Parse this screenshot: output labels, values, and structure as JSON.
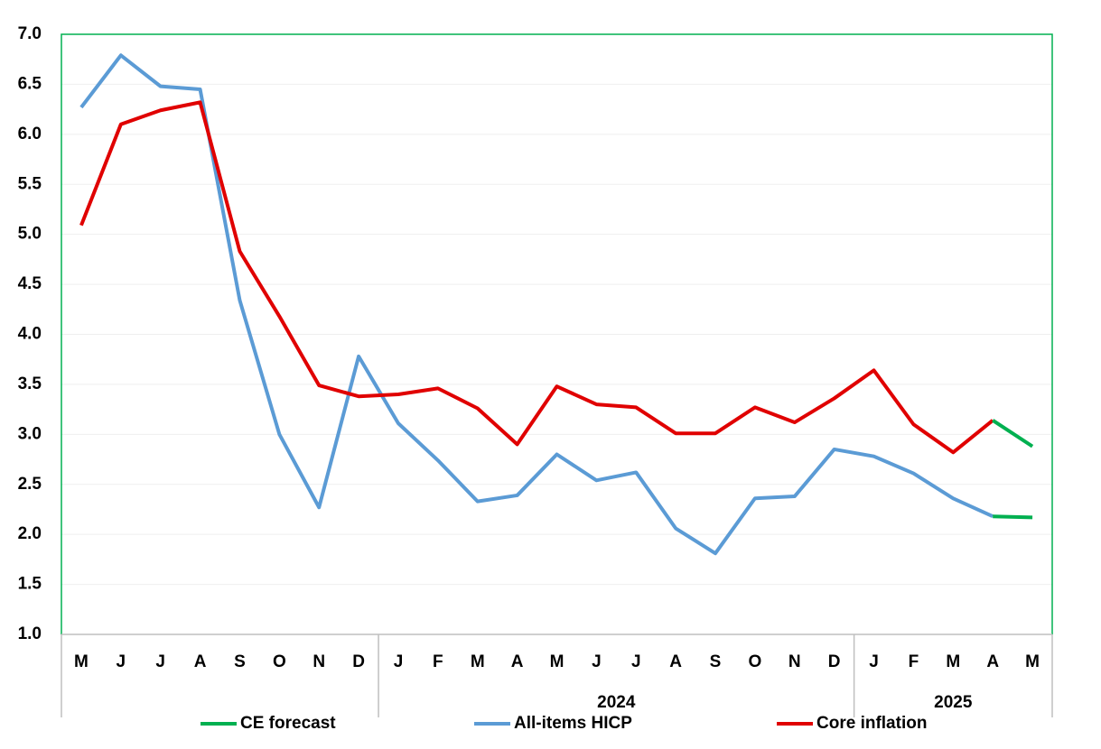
{
  "chart_data": {
    "type": "line",
    "categories": [
      "M",
      "J",
      "J",
      "A",
      "S",
      "O",
      "N",
      "D",
      "J",
      "F",
      "M",
      "A",
      "M",
      "J",
      "J",
      "A",
      "S",
      "O",
      "N",
      "D",
      "J",
      "F",
      "M",
      "A",
      "M"
    ],
    "groups": [
      {
        "size": 8
      },
      {
        "label": "2024",
        "size": 12
      },
      {
        "label": "2025",
        "size": 5
      }
    ],
    "series": [
      {
        "name": "CE forecast",
        "color": "#00b050",
        "values": [
          null,
          null,
          null,
          null,
          null,
          null,
          null,
          null,
          null,
          null,
          null,
          null,
          null,
          null,
          null,
          null,
          null,
          null,
          null,
          null,
          null,
          null,
          null,
          3.14,
          2.88
        ]
      },
      {
        "name": "All-items HICP",
        "color": "#5b9bd5",
        "values": [
          6.27,
          6.79,
          6.48,
          6.45,
          4.34,
          3.0,
          2.27,
          3.78,
          3.11,
          2.74,
          2.33,
          2.39,
          2.8,
          2.54,
          2.62,
          2.06,
          1.81,
          2.36,
          2.38,
          2.85,
          2.78,
          2.61,
          2.36,
          2.18,
          null
        ]
      },
      {
        "name": "Core inflation",
        "color": "#e00000",
        "values": [
          5.09,
          6.1,
          6.24,
          6.32,
          4.83,
          4.18,
          3.49,
          3.38,
          3.4,
          3.46,
          3.26,
          2.9,
          3.48,
          3.3,
          3.27,
          3.01,
          3.01,
          3.27,
          3.12,
          3.36,
          3.64,
          3.1,
          2.82,
          3.14,
          null
        ]
      },
      {
        "color": "#00b050",
        "values": [
          null,
          null,
          null,
          null,
          null,
          null,
          null,
          null,
          null,
          null,
          null,
          null,
          null,
          null,
          null,
          null,
          null,
          null,
          null,
          null,
          null,
          null,
          null,
          2.18,
          2.17
        ]
      }
    ],
    "ylim": [
      1,
      7
    ],
    "yticks": [
      {
        "value": 1,
        "label": "1.0"
      },
      1.5,
      {
        "value": 2,
        "label": "2.0"
      },
      2.5,
      {
        "value": 3,
        "label": "3.0"
      },
      3.5,
      {
        "value": 4,
        "label": "4.0"
      },
      4.5,
      {
        "value": 5,
        "label": "5.0"
      },
      5.5,
      {
        "value": 6,
        "label": "6.0"
      },
      6.5,
      {
        "value": 7,
        "label": "7.0"
      }
    ],
    "grid": true,
    "legend": "bottom"
  }
}
